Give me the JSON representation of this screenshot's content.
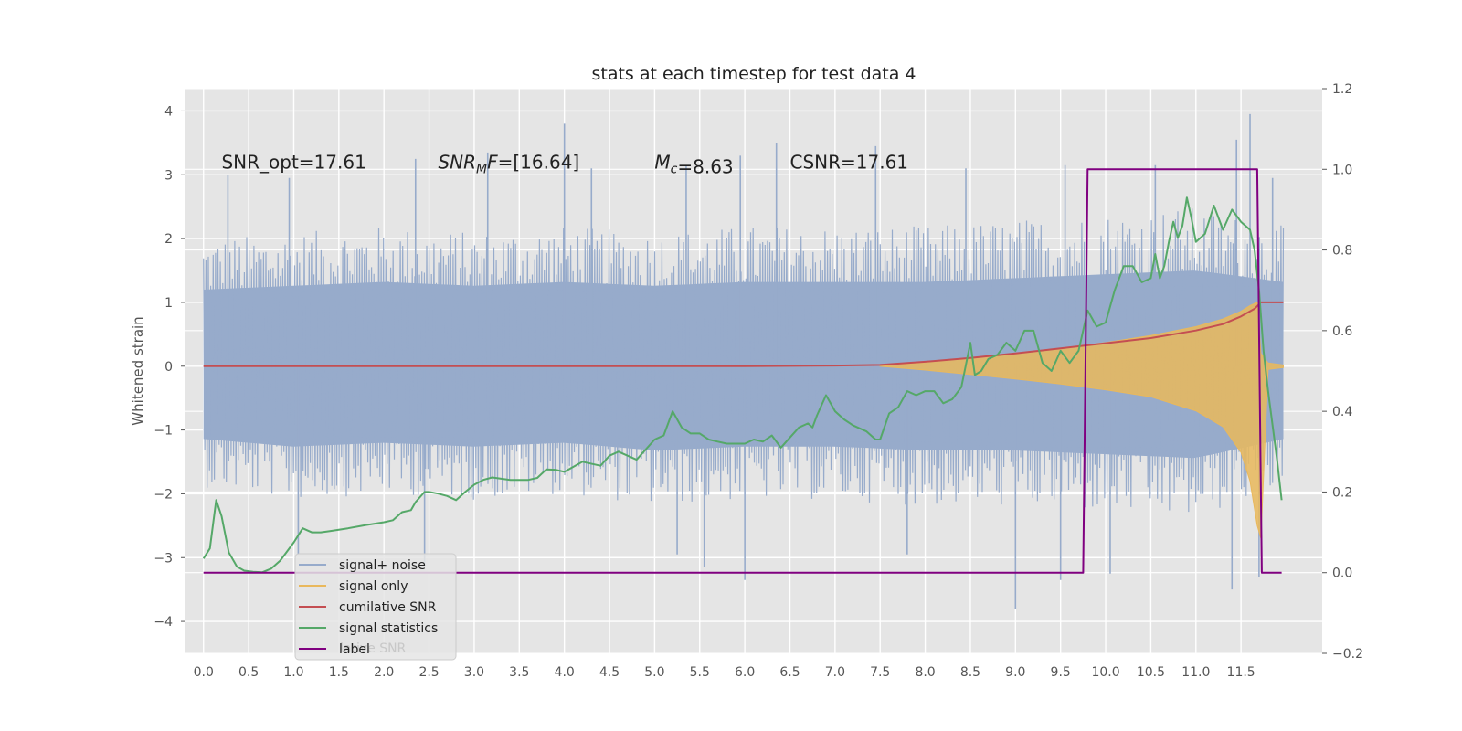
{
  "chart_data": {
    "type": "line",
    "title": "stats at each timestep for test data 4",
    "ylabel": "Whitened strain",
    "xlabel": "",
    "xlim": [
      -0.2,
      12.4
    ],
    "ylim": [
      -4.5,
      4.35
    ],
    "y2lim": [
      -0.2,
      1.2
    ],
    "x_ticks": [
      "0.0",
      "0.5",
      "1.0",
      "1.5",
      "2.0",
      "2.5",
      "3.0",
      "3.5",
      "4.0",
      "4.5",
      "5.0",
      "5.5",
      "6.0",
      "6.5",
      "7.0",
      "7.5",
      "8.0",
      "8.5",
      "9.0",
      "9.5",
      "10.0",
      "10.5",
      "11.0",
      "11.5"
    ],
    "y_ticks": [
      "4",
      "3",
      "2",
      "1",
      "0",
      "−1",
      "−2",
      "−3",
      "−4"
    ],
    "y2_ticks": [
      "1.2",
      "1.0",
      "0.8",
      "0.6",
      "0.4",
      "0.2",
      "0.0",
      "−0.2"
    ],
    "grid": true,
    "annotations": [
      {
        "prefix": "SNR_opt=17.61",
        "x": 0.2,
        "y": 3.2
      },
      {
        "prefix": "SNR",
        "sub": "M",
        "suffix": "F=[16.64]",
        "x": 2.6,
        "y": 3.2
      },
      {
        "prefix": "M",
        "sub": "c",
        "suffix": "=8.63",
        "x": 5.0,
        "y": 3.2
      },
      {
        "prefix": "CSNR=17.61",
        "x": 6.5,
        "y": 3.2
      }
    ],
    "legend": {
      "placement": "lower-left",
      "entries": [
        "signal+ noise",
        "signal only",
        "cumilative SNR",
        "signal statistics",
        "label"
      ],
      "ghost_text": "lative SNR"
    },
    "series": [
      {
        "name": "signal+ noise",
        "color": "#97abcb",
        "axis": "left",
        "description": "whitened noisy strain, roughly uniform spread about 0 with spikes",
        "envelope_x": [
          0.0,
          1.0,
          2.0,
          3.0,
          4.0,
          5.0,
          6.0,
          7.0,
          8.0,
          9.0,
          10.0,
          11.0,
          11.97
        ],
        "envelope_upper": [
          2.0,
          2.1,
          2.2,
          2.1,
          2.2,
          2.1,
          2.2,
          2.2,
          2.2,
          2.3,
          2.4,
          2.5,
          2.2
        ],
        "envelope_lower": [
          -1.9,
          -2.1,
          -2.0,
          -2.1,
          -2.0,
          -2.2,
          -2.1,
          -2.1,
          -2.2,
          -2.2,
          -2.3,
          -2.4,
          -1.9
        ],
        "spikes": [
          [
            0.27,
            3.0
          ],
          [
            0.95,
            2.95
          ],
          [
            2.35,
            3.25
          ],
          [
            3.15,
            3.35
          ],
          [
            4.0,
            3.8
          ],
          [
            4.3,
            3.1
          ],
          [
            5.35,
            3.15
          ],
          [
            5.95,
            3.3
          ],
          [
            6.35,
            3.5
          ],
          [
            7.45,
            3.45
          ],
          [
            8.45,
            3.1
          ],
          [
            9.55,
            3.15
          ],
          [
            10.55,
            3.15
          ],
          [
            11.45,
            3.55
          ],
          [
            11.6,
            3.95
          ],
          [
            11.85,
            2.95
          ],
          [
            1.05,
            -2.95
          ],
          [
            2.45,
            -3.1
          ],
          [
            5.25,
            -2.95
          ],
          [
            5.55,
            -3.15
          ],
          [
            6.0,
            -3.35
          ],
          [
            7.8,
            -2.95
          ],
          [
            9.0,
            -3.8
          ],
          [
            9.5,
            -3.35
          ],
          [
            10.05,
            -3.25
          ],
          [
            11.4,
            -3.5
          ],
          [
            11.7,
            -3.3
          ]
        ]
      },
      {
        "name": "signal only",
        "color": "#e9b85c",
        "axis": "left",
        "description": "chirp envelope growing toward merger at ~11.7",
        "envelope_x": [
          7.5,
          8.0,
          8.5,
          9.0,
          9.5,
          10.0,
          10.5,
          11.0,
          11.3,
          11.5,
          11.6,
          11.68,
          11.72,
          11.8,
          11.97
        ],
        "envelope_upper": [
          0.0,
          0.06,
          0.13,
          0.2,
          0.28,
          0.37,
          0.48,
          0.62,
          0.74,
          0.86,
          0.95,
          1.0,
          0.2,
          0.05,
          0.02
        ],
        "envelope_lower": [
          0.0,
          -0.06,
          -0.13,
          -0.2,
          -0.28,
          -0.37,
          -0.48,
          -0.7,
          -0.95,
          -1.35,
          -1.8,
          -2.5,
          -2.7,
          -0.05,
          -0.02
        ]
      },
      {
        "name": "cumilative SNR",
        "color": "#c44e52",
        "axis": "left",
        "x": [
          0.0,
          6.0,
          7.0,
          7.5,
          8.0,
          8.5,
          9.0,
          9.5,
          10.0,
          10.5,
          11.0,
          11.3,
          11.5,
          11.65,
          11.72,
          11.97
        ],
        "y": [
          0.0,
          0.0,
          0.01,
          0.02,
          0.07,
          0.13,
          0.2,
          0.28,
          0.36,
          0.44,
          0.56,
          0.66,
          0.78,
          0.9,
          1.0,
          1.0
        ]
      },
      {
        "name": "signal statistics",
        "color": "#55a868",
        "axis": "right",
        "x": [
          0.0,
          0.07,
          0.14,
          0.2,
          0.28,
          0.37,
          0.45,
          0.55,
          0.65,
          0.75,
          0.85,
          1.0,
          1.1,
          1.2,
          1.3,
          1.4,
          1.6,
          1.8,
          2.0,
          2.1,
          2.2,
          2.3,
          2.35,
          2.45,
          2.5,
          2.6,
          2.7,
          2.8,
          2.9,
          3.0,
          3.1,
          3.2,
          3.4,
          3.6,
          3.7,
          3.8,
          3.9,
          4.0,
          4.2,
          4.4,
          4.5,
          4.6,
          4.8,
          5.0,
          5.1,
          5.2,
          5.3,
          5.4,
          5.5,
          5.6,
          5.7,
          5.8,
          5.9,
          6.0,
          6.1,
          6.2,
          6.3,
          6.4,
          6.5,
          6.6,
          6.7,
          6.75,
          6.8,
          6.9,
          7.0,
          7.1,
          7.2,
          7.35,
          7.45,
          7.5,
          7.6,
          7.7,
          7.8,
          7.9,
          8.0,
          8.1,
          8.2,
          8.3,
          8.4,
          8.5,
          8.55,
          8.62,
          8.7,
          8.8,
          8.9,
          9.0,
          9.1,
          9.2,
          9.3,
          9.4,
          9.5,
          9.6,
          9.7,
          9.8,
          9.9,
          10.0,
          10.1,
          10.2,
          10.3,
          10.4,
          10.5,
          10.55,
          10.6,
          10.65,
          10.7,
          10.75,
          10.8,
          10.85,
          10.9,
          10.95,
          11.0,
          11.1,
          11.2,
          11.3,
          11.4,
          11.5,
          11.55,
          11.6,
          11.65,
          11.7,
          11.75,
          11.8,
          11.9,
          11.95
        ],
        "y": [
          0.035,
          0.06,
          0.18,
          0.14,
          0.05,
          0.015,
          0.005,
          0.002,
          0.001,
          0.01,
          0.03,
          0.075,
          0.11,
          0.1,
          0.1,
          0.103,
          0.11,
          0.118,
          0.125,
          0.13,
          0.15,
          0.155,
          0.175,
          0.2,
          0.2,
          0.196,
          0.19,
          0.18,
          0.2,
          0.218,
          0.23,
          0.236,
          0.23,
          0.23,
          0.235,
          0.256,
          0.255,
          0.25,
          0.275,
          0.265,
          0.29,
          0.3,
          0.28,
          0.33,
          0.34,
          0.4,
          0.36,
          0.345,
          0.345,
          0.33,
          0.325,
          0.32,
          0.32,
          0.32,
          0.33,
          0.325,
          0.34,
          0.31,
          0.335,
          0.36,
          0.37,
          0.36,
          0.39,
          0.44,
          0.4,
          0.38,
          0.365,
          0.35,
          0.33,
          0.33,
          0.395,
          0.41,
          0.45,
          0.44,
          0.45,
          0.45,
          0.42,
          0.43,
          0.46,
          0.57,
          0.49,
          0.5,
          0.53,
          0.54,
          0.57,
          0.55,
          0.6,
          0.6,
          0.52,
          0.5,
          0.55,
          0.52,
          0.55,
          0.65,
          0.61,
          0.62,
          0.7,
          0.76,
          0.76,
          0.72,
          0.73,
          0.79,
          0.73,
          0.76,
          0.82,
          0.87,
          0.83,
          0.86,
          0.93,
          0.88,
          0.82,
          0.84,
          0.91,
          0.85,
          0.9,
          0.87,
          0.86,
          0.85,
          0.8,
          0.7,
          0.55,
          0.45,
          0.28,
          0.18
        ]
      },
      {
        "name": "label",
        "color": "#800080",
        "axis": "right",
        "x": [
          0.0,
          9.75,
          9.8,
          11.68,
          11.73,
          11.95
        ],
        "y": [
          0.0,
          0.0,
          1.0,
          1.0,
          0.0,
          0.0
        ]
      }
    ]
  }
}
